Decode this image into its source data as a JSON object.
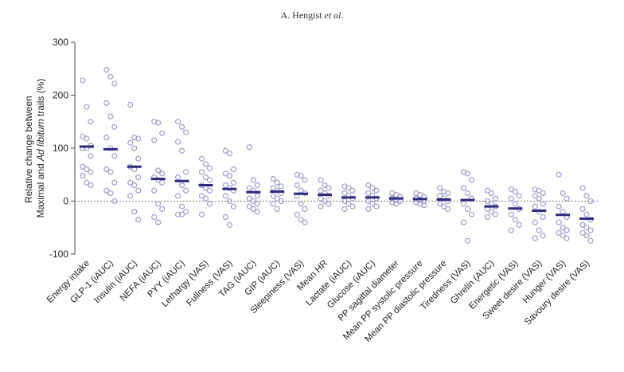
{
  "header": {
    "author": "A. Hengist",
    "etal": "et al."
  },
  "chart_data": {
    "type": "scatter",
    "ylabel_line1": "Relative change between",
    "ylabel_line2_pre": "Maximal and ",
    "ylabel_line2_italic": "Ad libitum",
    "ylabel_line2_post": " trails (%)",
    "ylim": [
      -100,
      300
    ],
    "yticks": [
      -100,
      0,
      100,
      200,
      300
    ],
    "colors": {
      "points": "#9a93c9",
      "mean": "#2e2a7c",
      "axis": "#444444",
      "zero": "#777777"
    },
    "categories": [
      "Energy intake",
      "GLP-1 (iAUC)",
      "Insulin (iAUC)",
      "NEFA (iAUC)",
      "PYY (iAUC)",
      "Lethargy (VAS)",
      "Fullness (VAS)",
      "TAG (iAUC)",
      "GIP (iAUC)",
      "Sleepiness (VAS)",
      "Mean HR",
      "Lactate (iAUC)",
      "Glucose (iAUC)",
      "PP sagittal diameter",
      "Mean PP systolic pressure",
      "Mean PP diastolic pressure",
      "Tiredness (VAS)",
      "Ghrelin (AUC)",
      "Energetic (VAS)",
      "Sweet desire (VAS)",
      "Hunger (VAS)",
      "Savoury desire (VAS)"
    ],
    "means": [
      103,
      98,
      65,
      42,
      38,
      30,
      23,
      17,
      18,
      14,
      12,
      7,
      7,
      5,
      4,
      3,
      2,
      -10,
      -14,
      -18,
      -26,
      -33
    ],
    "points": [
      [
        228,
        178,
        150,
        122,
        118,
        105,
        100,
        100,
        85,
        65,
        60,
        55,
        48,
        35,
        30
      ],
      [
        248,
        235,
        222,
        185,
        160,
        140,
        120,
        100,
        85,
        60,
        55,
        35,
        20,
        15,
        0
      ],
      [
        182,
        120,
        118,
        110,
        100,
        80,
        65,
        60,
        45,
        35,
        30,
        20,
        10,
        -20,
        -35
      ],
      [
        150,
        148,
        128,
        115,
        58,
        52,
        45,
        40,
        35,
        20,
        -5,
        -15,
        -30,
        -40
      ],
      [
        150,
        140,
        130,
        112,
        95,
        55,
        45,
        30,
        20,
        10,
        -10,
        -20,
        -25,
        -25
      ],
      [
        80,
        70,
        62,
        55,
        45,
        40,
        30,
        25,
        20,
        10,
        5,
        -5,
        -25
      ],
      [
        95,
        90,
        60,
        52,
        48,
        35,
        30,
        25,
        20,
        10,
        0,
        -10,
        -30,
        -45
      ],
      [
        102,
        40,
        30,
        25,
        20,
        10,
        5,
        0,
        -5,
        -10,
        -15,
        -20
      ],
      [
        42,
        35,
        28,
        25,
        20,
        15,
        10,
        5,
        0,
        -5,
        -15
      ],
      [
        50,
        48,
        40,
        30,
        20,
        15,
        10,
        -5,
        -15,
        -25,
        -35,
        -40
      ],
      [
        40,
        30,
        25,
        20,
        15,
        10,
        5,
        0,
        -5,
        -10
      ],
      [
        28,
        25,
        20,
        15,
        10,
        5,
        0,
        -5,
        -10,
        -15
      ],
      [
        30,
        25,
        20,
        15,
        10,
        5,
        0,
        -5,
        -10,
        -15
      ],
      [
        15,
        12,
        8,
        5,
        2,
        0,
        -2,
        -5
      ],
      [
        15,
        12,
        8,
        5,
        2,
        0,
        -2,
        -5,
        -8
      ],
      [
        25,
        18,
        15,
        10,
        5,
        0,
        -5,
        -10,
        -15
      ],
      [
        55,
        52,
        40,
        25,
        15,
        5,
        -5,
        -15,
        -25,
        -40,
        -75
      ],
      [
        20,
        15,
        5,
        0,
        -5,
        -10,
        -15,
        -20,
        -25,
        -30
      ],
      [
        22,
        18,
        10,
        5,
        -5,
        -15,
        -25,
        -35,
        -45,
        -55
      ],
      [
        22,
        20,
        15,
        10,
        5,
        -5,
        -10,
        -20,
        -30,
        -40,
        -55,
        -65,
        -70
      ],
      [
        50,
        15,
        5,
        -10,
        -20,
        -30,
        -40,
        -50,
        -55,
        -60,
        -65,
        -70
      ],
      [
        25,
        10,
        0,
        -15,
        -25,
        -35,
        -45,
        -50,
        -55,
        -60,
        -65,
        -75
      ]
    ]
  }
}
